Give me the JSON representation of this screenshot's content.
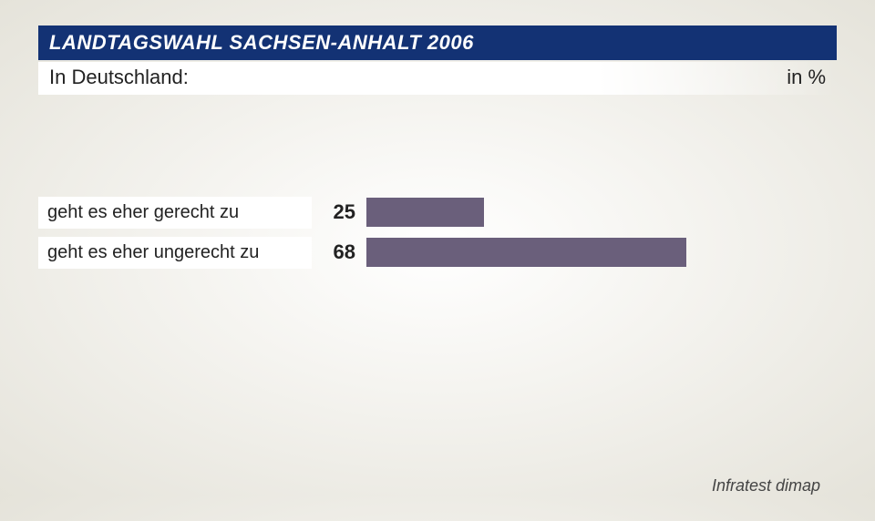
{
  "header": {
    "title": "LANDTAGSWAHL SACHSEN-ANHALT 2006",
    "subtitle_left": "In Deutschland:",
    "subtitle_right": "in %",
    "title_bg": "#133274",
    "title_color": "#ffffff",
    "title_fontsize": 22
  },
  "chart": {
    "type": "bar-horizontal",
    "bar_color": "#6a5f7b",
    "label_bg": "#ffffff",
    "label_fontsize": 20,
    "value_fontsize": 22,
    "value_fontweight": "bold",
    "max_value": 100,
    "rows": [
      {
        "label": "geht es eher gerecht zu",
        "value": 25
      },
      {
        "label": "geht es eher ungerecht zu",
        "value": 68
      }
    ]
  },
  "source": "Infratest dimap",
  "background": {
    "gradient_inner": "#ffffff",
    "gradient_outer": "#e5e3da"
  }
}
